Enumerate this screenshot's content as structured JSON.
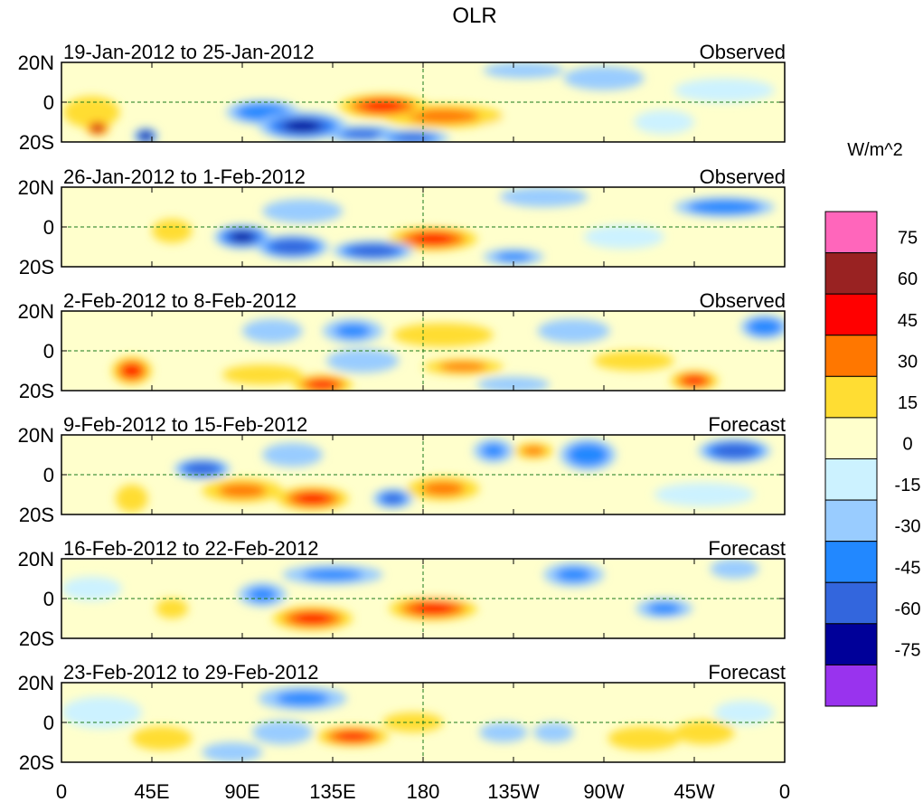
{
  "chart_data": {
    "type": "heatmap",
    "title": "OLR",
    "units_label": "W/m^2",
    "x_ticks": [
      "0",
      "45E",
      "90E",
      "135E",
      "180",
      "135W",
      "90W",
      "45W",
      "0"
    ],
    "y_ticks": [
      "20N",
      "0",
      "20S"
    ],
    "xlim_deg_east": [
      0,
      360
    ],
    "ylim_deg": [
      -20,
      20
    ],
    "colorbar": {
      "levels": [
        -75,
        -60,
        -45,
        -30,
        -15,
        0,
        15,
        30,
        45,
        60,
        75
      ],
      "tick_labels": [
        "75",
        "60",
        "45",
        "30",
        "15",
        "0",
        "-15",
        "-30",
        "-45",
        "-60",
        "-75"
      ],
      "colors": [
        "#9933ee",
        "#000099",
        "#3366dd",
        "#2288ff",
        "#99ccff",
        "#ccf2ff",
        "#ffffcc",
        "#ffdd33",
        "#ff7700",
        "#ff0000",
        "#992222",
        "#ff66bb"
      ]
    },
    "panels": [
      {
        "period": "19-Jan-2012 to 25-Jan-2012",
        "kind": "Observed",
        "anomalies": [
          {
            "lon": 160,
            "lat": -2,
            "rlon": 22,
            "rlat": 6,
            "value": 50
          },
          {
            "lon": 190,
            "lat": -7,
            "rlon": 30,
            "rlat": 6,
            "value": 30
          },
          {
            "lon": 18,
            "lat": -13,
            "rlon": 6,
            "rlat": 4,
            "value": 60
          },
          {
            "lon": 15,
            "lat": -5,
            "rlon": 14,
            "rlat": 8,
            "value": 18
          },
          {
            "lon": 120,
            "lat": -12,
            "rlon": 22,
            "rlat": 7,
            "value": -65
          },
          {
            "lon": 100,
            "lat": -5,
            "rlon": 18,
            "rlat": 6,
            "value": -45
          },
          {
            "lon": 150,
            "lat": -16,
            "rlon": 20,
            "rlat": 4,
            "value": -50
          },
          {
            "lon": 175,
            "lat": -18,
            "rlon": 18,
            "rlat": 4,
            "value": -55
          },
          {
            "lon": 42,
            "lat": -17,
            "rlon": 6,
            "rlat": 4,
            "value": -75
          },
          {
            "lon": 270,
            "lat": 12,
            "rlon": 20,
            "rlat": 6,
            "value": -30
          },
          {
            "lon": 230,
            "lat": 16,
            "rlon": 20,
            "rlat": 4,
            "value": -20
          },
          {
            "lon": 330,
            "lat": 6,
            "rlon": 25,
            "rlat": 6,
            "value": -15
          },
          {
            "lon": 55,
            "lat": 12,
            "rlon": 20,
            "rlat": 7,
            "value": 12
          },
          {
            "lon": 240,
            "lat": -12,
            "rlon": 30,
            "rlat": 6,
            "value": 10
          },
          {
            "lon": 300,
            "lat": -10,
            "rlon": 15,
            "rlat": 6,
            "value": -15
          }
        ]
      },
      {
        "period": "26-Jan-2012 to 1-Feb-2012",
        "kind": "Observed",
        "anomalies": [
          {
            "lon": 185,
            "lat": -6,
            "rlon": 22,
            "rlat": 6,
            "value": 45
          },
          {
            "lon": 200,
            "lat": 10,
            "rlon": 25,
            "rlat": 6,
            "value": 12
          },
          {
            "lon": 90,
            "lat": -5,
            "rlon": 14,
            "rlat": 6,
            "value": -65
          },
          {
            "lon": 115,
            "lat": -10,
            "rlon": 18,
            "rlat": 6,
            "value": -60
          },
          {
            "lon": 155,
            "lat": -12,
            "rlon": 20,
            "rlat": 5,
            "value": -60
          },
          {
            "lon": 120,
            "lat": 8,
            "rlon": 20,
            "rlat": 6,
            "value": -30
          },
          {
            "lon": 330,
            "lat": 10,
            "rlon": 25,
            "rlat": 5,
            "value": -45
          },
          {
            "lon": 240,
            "lat": 15,
            "rlon": 22,
            "rlat": 5,
            "value": -30
          },
          {
            "lon": 225,
            "lat": -15,
            "rlon": 15,
            "rlat": 4,
            "value": -35
          },
          {
            "lon": 20,
            "lat": 0,
            "rlon": 18,
            "rlat": 10,
            "value": 12
          },
          {
            "lon": 55,
            "lat": -2,
            "rlon": 10,
            "rlat": 6,
            "value": 15
          },
          {
            "lon": 280,
            "lat": -5,
            "rlon": 20,
            "rlat": 6,
            "value": -15
          }
        ]
      },
      {
        "period": "2-Feb-2012 to 8-Feb-2012",
        "kind": "Observed",
        "anomalies": [
          {
            "lon": 130,
            "lat": -17,
            "rlon": 15,
            "rlat": 5,
            "value": 55
          },
          {
            "lon": 100,
            "lat": -12,
            "rlon": 20,
            "rlat": 5,
            "value": 25
          },
          {
            "lon": 35,
            "lat": -10,
            "rlon": 10,
            "rlat": 7,
            "value": 45
          },
          {
            "lon": 200,
            "lat": -8,
            "rlon": 20,
            "rlat": 4,
            "value": 38
          },
          {
            "lon": 190,
            "lat": 8,
            "rlon": 25,
            "rlat": 6,
            "value": 18
          },
          {
            "lon": 315,
            "lat": -15,
            "rlon": 12,
            "rlat": 5,
            "value": 55
          },
          {
            "lon": 285,
            "lat": -5,
            "rlon": 20,
            "rlat": 5,
            "value": 15
          },
          {
            "lon": 145,
            "lat": 10,
            "rlon": 15,
            "rlat": 6,
            "value": -40
          },
          {
            "lon": 150,
            "lat": -5,
            "rlon": 18,
            "rlat": 6,
            "value": -30
          },
          {
            "lon": 105,
            "lat": 10,
            "rlon": 15,
            "rlat": 6,
            "value": -25
          },
          {
            "lon": 350,
            "lat": 12,
            "rlon": 12,
            "rlat": 6,
            "value": -45
          },
          {
            "lon": 255,
            "lat": 10,
            "rlon": 18,
            "rlat": 6,
            "value": -30
          },
          {
            "lon": 225,
            "lat": -17,
            "rlon": 18,
            "rlat": 4,
            "value": -20
          }
        ]
      },
      {
        "period": "9-Feb-2012 to 15-Feb-2012",
        "kind": "Forecast",
        "anomalies": [
          {
            "lon": 125,
            "lat": -12,
            "rlon": 18,
            "rlat": 6,
            "value": 48
          },
          {
            "lon": 90,
            "lat": -8,
            "rlon": 20,
            "rlat": 6,
            "value": 32
          },
          {
            "lon": 190,
            "lat": -7,
            "rlon": 18,
            "rlat": 6,
            "value": 40
          },
          {
            "lon": 235,
            "lat": 12,
            "rlon": 10,
            "rlat": 4,
            "value": 35
          },
          {
            "lon": 35,
            "lat": -12,
            "rlon": 8,
            "rlat": 7,
            "value": 25
          },
          {
            "lon": 160,
            "lat": 5,
            "rlon": 20,
            "rlat": 6,
            "value": 12
          },
          {
            "lon": 70,
            "lat": 3,
            "rlon": 14,
            "rlat": 5,
            "value": -60
          },
          {
            "lon": 335,
            "lat": 12,
            "rlon": 18,
            "rlat": 6,
            "value": -60
          },
          {
            "lon": 262,
            "lat": 10,
            "rlon": 14,
            "rlat": 8,
            "value": -45
          },
          {
            "lon": 165,
            "lat": -12,
            "rlon": 10,
            "rlat": 5,
            "value": -55
          },
          {
            "lon": 215,
            "lat": 12,
            "rlon": 10,
            "rlat": 6,
            "value": -35
          },
          {
            "lon": 115,
            "lat": 10,
            "rlon": 15,
            "rlat": 6,
            "value": -25
          },
          {
            "lon": 320,
            "lat": -10,
            "rlon": 25,
            "rlat": 6,
            "value": -15
          }
        ]
      },
      {
        "period": "16-Feb-2012 to 22-Feb-2012",
        "kind": "Forecast",
        "anomalies": [
          {
            "lon": 125,
            "lat": -10,
            "rlon": 20,
            "rlat": 6,
            "value": 50
          },
          {
            "lon": 185,
            "lat": -5,
            "rlon": 22,
            "rlat": 6,
            "value": 50
          },
          {
            "lon": 55,
            "lat": -5,
            "rlon": 8,
            "rlat": 5,
            "value": 25
          },
          {
            "lon": 205,
            "lat": 5,
            "rlon": 30,
            "rlat": 5,
            "value": 12
          },
          {
            "lon": 100,
            "lat": 2,
            "rlon": 12,
            "rlat": 6,
            "value": -35
          },
          {
            "lon": 135,
            "lat": 12,
            "rlon": 25,
            "rlat": 5,
            "value": -40
          },
          {
            "lon": 255,
            "lat": 12,
            "rlon": 15,
            "rlat": 6,
            "value": -40
          },
          {
            "lon": 300,
            "lat": -5,
            "rlon": 14,
            "rlat": 5,
            "value": -35
          },
          {
            "lon": 335,
            "lat": 15,
            "rlon": 12,
            "rlat": 5,
            "value": -20
          },
          {
            "lon": 15,
            "lat": 5,
            "rlon": 15,
            "rlat": 6,
            "value": -15
          },
          {
            "lon": 315,
            "lat": -15,
            "rlon": 20,
            "rlat": 4,
            "value": 12
          }
        ]
      },
      {
        "period": "23-Feb-2012 to 29-Feb-2012",
        "kind": "Forecast",
        "anomalies": [
          {
            "lon": 145,
            "lat": -7,
            "rlon": 18,
            "rlat": 5,
            "value": 48
          },
          {
            "lon": 175,
            "lat": 0,
            "rlon": 15,
            "rlat": 5,
            "value": 20
          },
          {
            "lon": 290,
            "lat": -8,
            "rlon": 18,
            "rlat": 6,
            "value": 25
          },
          {
            "lon": 320,
            "lat": -5,
            "rlon": 15,
            "rlat": 6,
            "value": 18
          },
          {
            "lon": 50,
            "lat": -8,
            "rlon": 15,
            "rlat": 6,
            "value": 15
          },
          {
            "lon": 120,
            "lat": 12,
            "rlon": 22,
            "rlat": 6,
            "value": -40
          },
          {
            "lon": 110,
            "lat": -5,
            "rlon": 15,
            "rlat": 6,
            "value": -30
          },
          {
            "lon": 220,
            "lat": -5,
            "rlon": 12,
            "rlat": 5,
            "value": -30
          },
          {
            "lon": 85,
            "lat": -15,
            "rlon": 15,
            "rlat": 5,
            "value": -25
          },
          {
            "lon": 245,
            "lat": -5,
            "rlon": 10,
            "rlat": 5,
            "value": -25
          },
          {
            "lon": 20,
            "lat": 5,
            "rlon": 20,
            "rlat": 8,
            "value": -15
          },
          {
            "lon": 340,
            "lat": 5,
            "rlon": 15,
            "rlat": 6,
            "value": -15
          }
        ]
      }
    ]
  }
}
